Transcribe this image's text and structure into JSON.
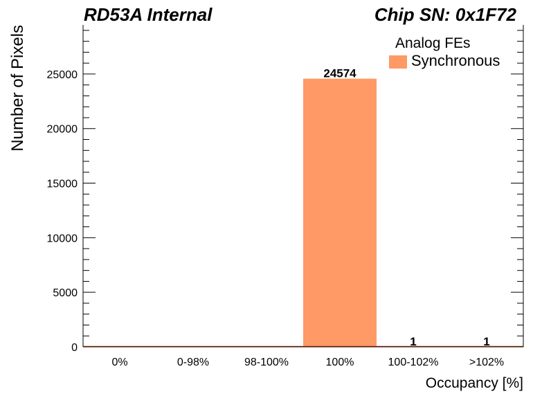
{
  "header": {
    "left_title": "RD53A Internal",
    "right_title": "Chip SN: 0x1F72"
  },
  "colors": {
    "bar": "#ff9966",
    "axis": "#000000",
    "baseline": "#cc3300"
  },
  "chart_data": {
    "type": "bar",
    "categories": [
      "0%",
      "0-98%",
      "98-100%",
      "100%",
      "100-102%",
      ">102%"
    ],
    "series": [
      {
        "name": "Synchronous",
        "values": [
          0,
          0,
          0,
          24574,
          1,
          1
        ]
      }
    ],
    "data_labels": [
      "",
      "",
      "",
      "24574",
      "1",
      "1"
    ],
    "xlabel": "Occupancy [%]",
    "ylabel": "Number of Pixels",
    "ylim": [
      0,
      29500
    ],
    "yticks": [
      0,
      5000,
      10000,
      15000,
      20000,
      25000
    ],
    "legend": {
      "title": "Analog FEs",
      "placement": "top-right"
    },
    "grid": false
  }
}
